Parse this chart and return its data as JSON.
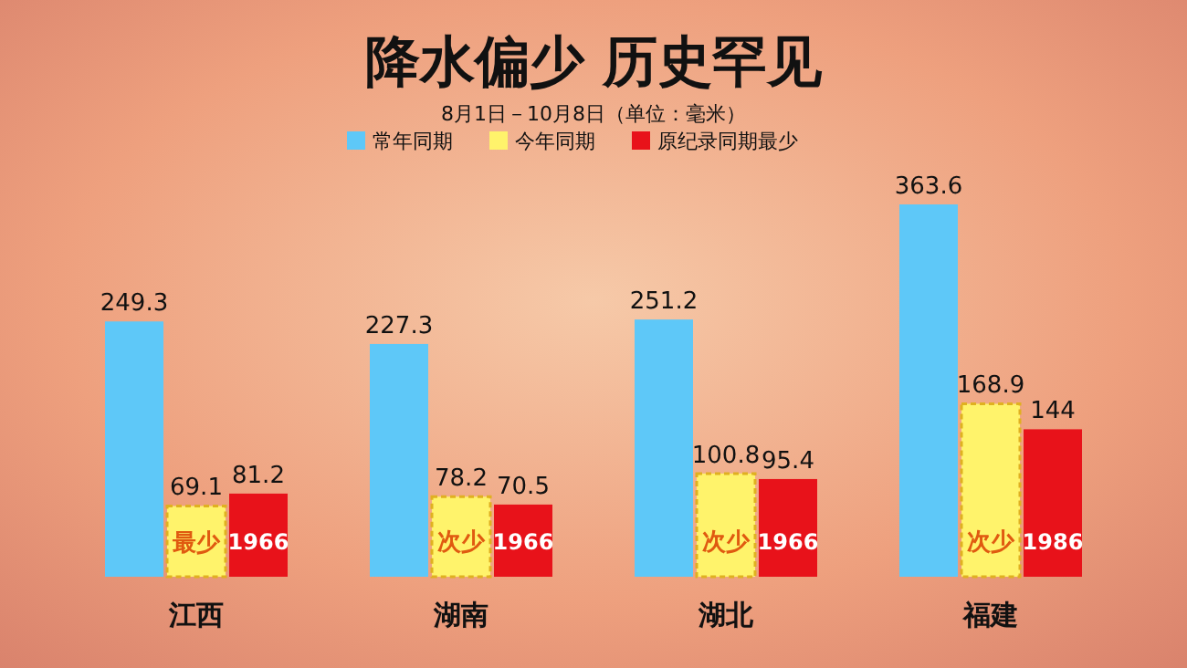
{
  "chart_data": {
    "type": "bar",
    "title": "降水偏少  历史罕见",
    "subtitle": "8月1日－10月8日（单位：毫米）",
    "categories": [
      "江西",
      "湖南",
      "湖北",
      "福建"
    ],
    "series": [
      {
        "name": "常年同期",
        "color": "#5ec8f8",
        "values": [
          249.3,
          227.3,
          251.2,
          363.6
        ]
      },
      {
        "name": "今年同期",
        "color": "#fff36b",
        "values": [
          69.1,
          78.2,
          100.8,
          168.9
        ]
      },
      {
        "name": "原纪录同期最少",
        "color": "#e8121a",
        "values": [
          81.2,
          70.5,
          95.4,
          144
        ]
      }
    ],
    "data_labels": true,
    "legend": "top",
    "annotations": [
      "最少",
      "1966",
      "次少",
      "1966",
      "次少",
      "1966",
      "次少",
      "1986"
    ]
  }
}
